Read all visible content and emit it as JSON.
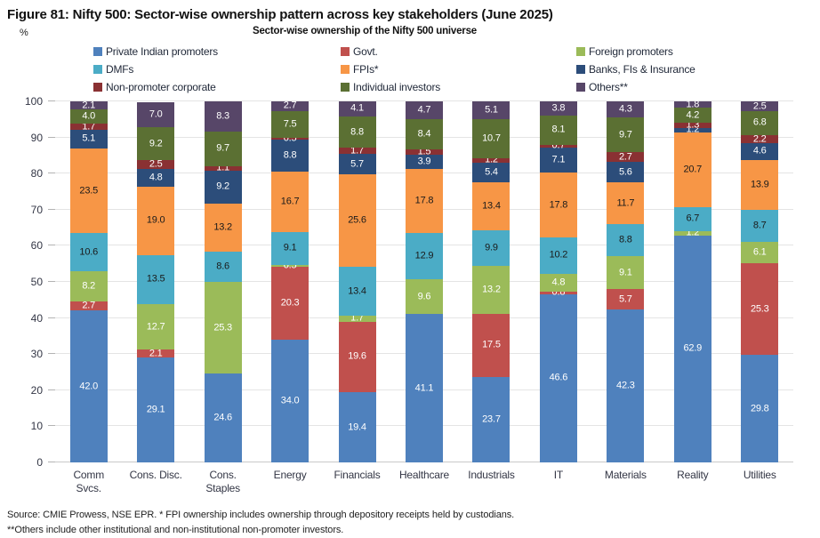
{
  "header": {
    "title": "Figure 81: Nifty 500: Sector-wise ownership pattern across key stakeholders (June 2025)",
    "subtitle": "Sector-wise ownership of the Nifty 500 universe",
    "y_unit": "%"
  },
  "footnotes": {
    "source": "Source: CMIE Prowess, NSE EPR. * FPI ownership includes ownership through depository receipts held by custodians.",
    "others": "**Others include other institutional and non-institutional non-promoter investors."
  },
  "chart_data": {
    "type": "bar",
    "stacked": true,
    "title": "Sector-wise ownership of the Nifty 500 universe",
    "xlabel": "",
    "ylabel": "%",
    "ylim": [
      0,
      100
    ],
    "yticks": [
      0,
      10,
      20,
      30,
      40,
      50,
      60,
      70,
      80,
      90,
      100
    ],
    "grid": "horizontal",
    "legend_position": "top",
    "categories": [
      "Comm\nSvcs.",
      "Cons. Disc.",
      "Cons.\nStaples",
      "Energy",
      "Financials",
      "Healthcare",
      "Industrials",
      "IT",
      "Materials",
      "Reality",
      "Utilities"
    ],
    "series": [
      {
        "name": "Private Indian promoters",
        "color": "#4f81bd",
        "label_color": "#ffffff",
        "values": [
          42.0,
          29.1,
          24.6,
          34.0,
          19.4,
          41.1,
          23.7,
          46.6,
          42.3,
          62.9,
          29.8
        ]
      },
      {
        "name": "Govt.",
        "color": "#c0504d",
        "label_color": "#ffffff",
        "values": [
          2.7,
          2.1,
          0,
          20.3,
          19.6,
          0,
          17.5,
          0.8,
          5.7,
          0,
          25.3
        ]
      },
      {
        "name": "Foreign promoters",
        "color": "#9bbb59",
        "label_color": "#ffffff",
        "values": [
          8.2,
          12.7,
          25.3,
          0.5,
          1.7,
          9.6,
          13.2,
          4.8,
          9.1,
          1.2,
          6.1
        ]
      },
      {
        "name": "DMFs",
        "color": "#4bacc6",
        "label_color": "#1a1a1a",
        "values": [
          10.6,
          13.5,
          8.6,
          9.1,
          13.4,
          12.9,
          9.9,
          10.2,
          8.8,
          6.7,
          8.7
        ]
      },
      {
        "name": "FPIs*",
        "color": "#f79646",
        "label_color": "#1a1a1a",
        "values": [
          23.5,
          19.0,
          13.2,
          16.7,
          25.6,
          17.8,
          13.4,
          17.8,
          11.7,
          20.7,
          13.9
        ]
      },
      {
        "name": "Banks, FIs & Insurance",
        "color": "#2c4d7a",
        "label_color": "#ffffff",
        "values": [
          5.1,
          4.8,
          9.2,
          8.8,
          5.7,
          3.9,
          5.4,
          7.1,
          5.6,
          1.2,
          4.6
        ]
      },
      {
        "name": "Non-promoter corporate",
        "color": "#8a3133",
        "label_color": "#ffffff",
        "values": [
          1.7,
          2.5,
          1.1,
          0.5,
          1.7,
          1.5,
          1.2,
          0.7,
          2.7,
          1.3,
          2.2
        ]
      },
      {
        "name": "Individual investors",
        "color": "#5b7033",
        "label_color": "#ffffff",
        "values": [
          4.0,
          9.2,
          9.7,
          7.5,
          8.8,
          8.4,
          10.7,
          8.1,
          9.7,
          4.2,
          6.8
        ]
      },
      {
        "name": "Others**",
        "color": "#574668",
        "label_color": "#ffffff",
        "values": [
          2.1,
          7.0,
          8.3,
          2.7,
          4.1,
          4.7,
          5.1,
          3.8,
          4.3,
          1.8,
          2.5
        ]
      }
    ]
  }
}
